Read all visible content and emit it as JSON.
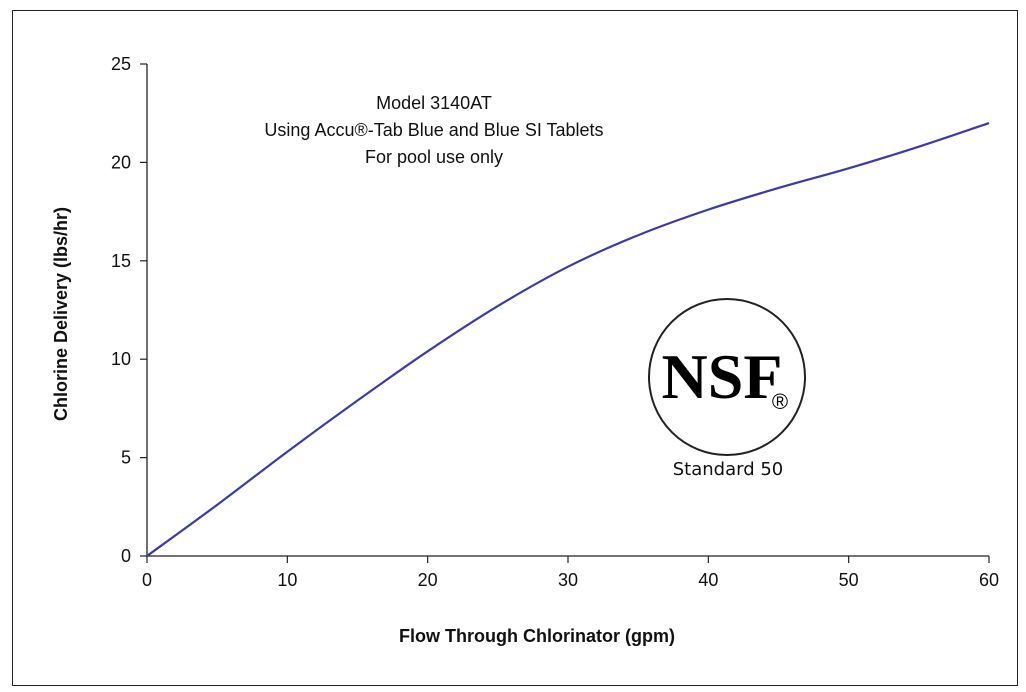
{
  "chart_data": {
    "type": "line",
    "title_lines": [
      "Model 3140AT",
      "Using Accu®-Tab Blue and Blue SI Tablets",
      "For pool use only"
    ],
    "xlabel": "Flow Through Chlorinator (gpm)",
    "ylabel": "Chlorine Delivery (lbs/hr)",
    "xlim": [
      0,
      60
    ],
    "ylim": [
      0,
      25
    ],
    "x_ticks": [
      0,
      10,
      20,
      30,
      40,
      50,
      60
    ],
    "y_ticks": [
      0,
      5,
      10,
      15,
      20,
      25
    ],
    "grid": false,
    "series": [
      {
        "color": "#3b3ba8",
        "x": [
          0,
          5,
          10,
          15,
          20,
          25,
          30,
          35,
          40,
          45,
          50,
          55,
          60
        ],
        "y": [
          0,
          2.6,
          5.3,
          7.9,
          10.4,
          12.7,
          14.7,
          16.3,
          17.6,
          18.7,
          19.7,
          20.8,
          22.0
        ]
      }
    ],
    "logo": {
      "text": "NSF",
      "registered_mark": "®",
      "caption": "Standard 50"
    }
  }
}
